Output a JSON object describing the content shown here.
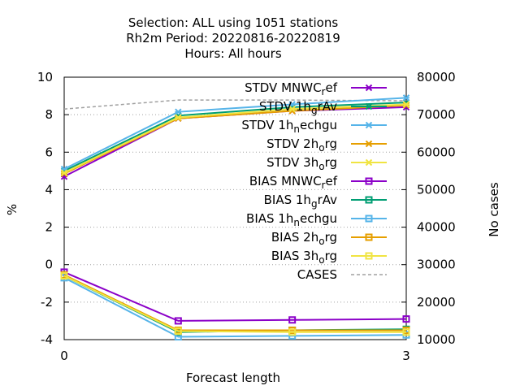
{
  "chart_data": {
    "type": "line",
    "title_lines": [
      "Selection: ALL using  1051 stations",
      "Rh2m   Period: 20220816-20220819",
      "Hours:  All hours"
    ],
    "xlabel": "Forecast length",
    "ylabel": "%",
    "y2label": "No cases",
    "x": [
      0,
      1,
      2,
      3
    ],
    "xlim": [
      0,
      3
    ],
    "xticks": [
      "0",
      "3"
    ],
    "ylim": [
      -4,
      10
    ],
    "yticks": [
      "10",
      "8",
      "6",
      "4",
      "2",
      "0",
      "-2",
      "-4"
    ],
    "y2lim": [
      10000,
      80000
    ],
    "y2ticks": [
      "80000",
      "70000",
      "60000",
      "50000",
      "40000",
      "30000",
      "20000",
      "10000"
    ],
    "grid": true,
    "legend_position": "top-right",
    "series": [
      {
        "name": "STDV MNWC_ref",
        "legend": {
          "main": "STDV MNWC",
          "sub": "ref",
          "mode": "sub"
        },
        "color": "#8b00c8",
        "marker": "x",
        "axis": "y1",
        "values": [
          4.7,
          7.8,
          8.2,
          8.4
        ]
      },
      {
        "name": "STDV 1h_grAv",
        "legend": {
          "main": "STDV 1h",
          "sub": "grAv",
          "mode": "sub"
        },
        "color": "#009e73",
        "marker": "x",
        "axis": "y1",
        "values": [
          5.0,
          7.95,
          8.4,
          8.65
        ]
      },
      {
        "name": "STDV 1h_nechgu",
        "legend": {
          "main": "STDV 1h",
          "sub": "nechgu",
          "mode": "sub"
        },
        "color": "#56b4e9",
        "marker": "x",
        "axis": "y1",
        "values": [
          5.1,
          8.15,
          8.55,
          8.9
        ]
      },
      {
        "name": "STDV 2h_org",
        "legend": {
          "main": "STDV 2h",
          "sub": "org",
          "mode": "sub"
        },
        "color": "#e69f00",
        "marker": "x",
        "axis": "y1",
        "values": [
          4.85,
          7.8,
          8.2,
          8.5
        ]
      },
      {
        "name": "STDV 3h_org",
        "legend": {
          "main": "STDV 3h",
          "sub": "org",
          "mode": "sub"
        },
        "color": "#f0e442",
        "marker": "x",
        "axis": "y1",
        "values": [
          4.9,
          7.85,
          8.3,
          8.55
        ]
      },
      {
        "name": "BIAS MNWC_ref",
        "legend": {
          "main": "BIAS MNWC",
          "sub": "ref",
          "mode": "sub"
        },
        "color": "#8b00c8",
        "marker": "square",
        "axis": "y1",
        "values": [
          -0.4,
          -3.0,
          -2.95,
          -2.9
        ]
      },
      {
        "name": "BIAS 1h_grAv",
        "legend": {
          "main": "BIAS 1h",
          "sub": "grAv",
          "mode": "sub"
        },
        "color": "#009e73",
        "marker": "square",
        "axis": "y1",
        "values": [
          -0.6,
          -3.6,
          -3.5,
          -3.45
        ]
      },
      {
        "name": "BIAS 1h_nechgu",
        "legend": {
          "main": "BIAS 1h",
          "sub": "nechgu",
          "mode": "sub"
        },
        "color": "#56b4e9",
        "marker": "square",
        "axis": "y1",
        "values": [
          -0.7,
          -3.85,
          -3.8,
          -3.75
        ]
      },
      {
        "name": "BIAS 2h_org",
        "legend": {
          "main": "BIAS 2h",
          "sub": "org",
          "mode": "sub"
        },
        "color": "#e69f00",
        "marker": "square",
        "axis": "y1",
        "values": [
          -0.55,
          -3.5,
          -3.5,
          -3.5
        ]
      },
      {
        "name": "BIAS 3h_org",
        "legend": {
          "main": "BIAS 3h",
          "sub": "org",
          "mode": "sub"
        },
        "color": "#f0e442",
        "marker": "square",
        "axis": "y1",
        "values": [
          -0.6,
          -3.55,
          -3.6,
          -3.6
        ]
      },
      {
        "name": "CASES",
        "legend": {
          "main": "CASES",
          "sub": "",
          "mode": "none"
        },
        "color": "#a0a0a0",
        "marker": "none",
        "dashed": true,
        "axis": "y2",
        "values": [
          71500,
          73900,
          73900,
          73700
        ]
      }
    ]
  }
}
